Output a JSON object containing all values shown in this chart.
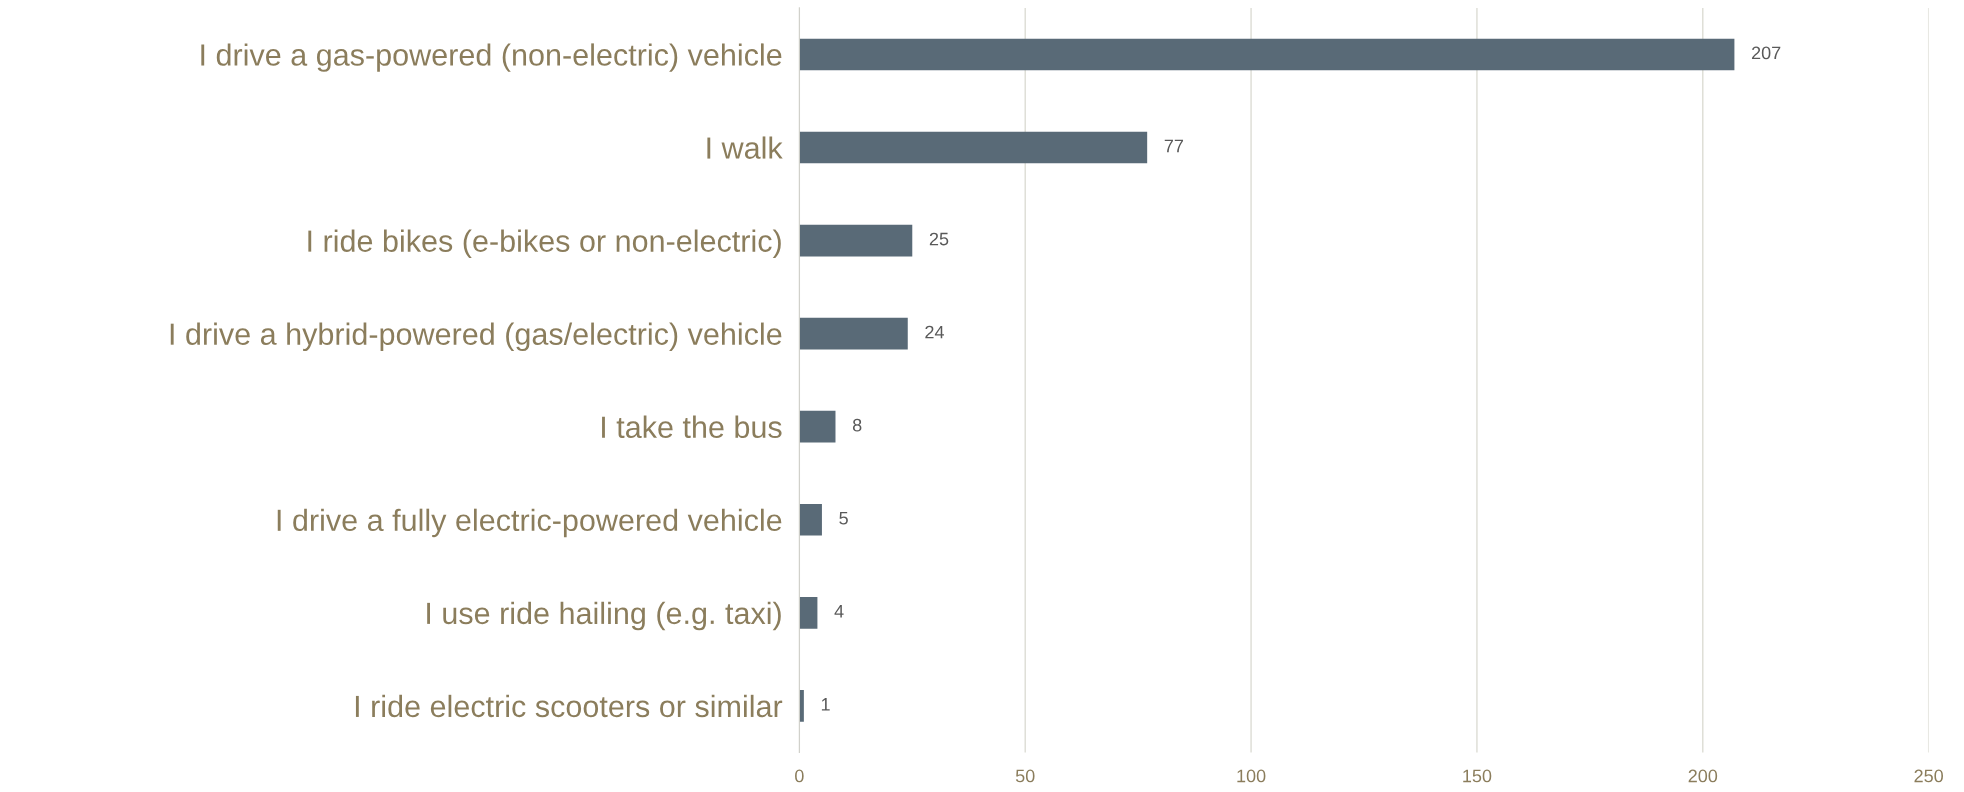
{
  "chart_data": {
    "type": "bar",
    "orientation": "horizontal",
    "categories": [
      "I drive a gas-powered (non-electric) vehicle",
      "I walk",
      "I ride bikes (e-bikes or non-electric)",
      "I drive a hybrid-powered (gas/electric) vehicle",
      "I take the bus",
      "I drive a fully electric-powered vehicle",
      "I use ride hailing (e.g. taxi)",
      "I ride electric scooters or similar"
    ],
    "values": [
      207,
      77,
      25,
      24,
      8,
      5,
      4,
      1
    ],
    "color": "#596a77",
    "xlim": [
      0,
      250
    ],
    "xticks": [
      0,
      50,
      100,
      150,
      200,
      250
    ],
    "grid": "x",
    "data_labels": true
  }
}
